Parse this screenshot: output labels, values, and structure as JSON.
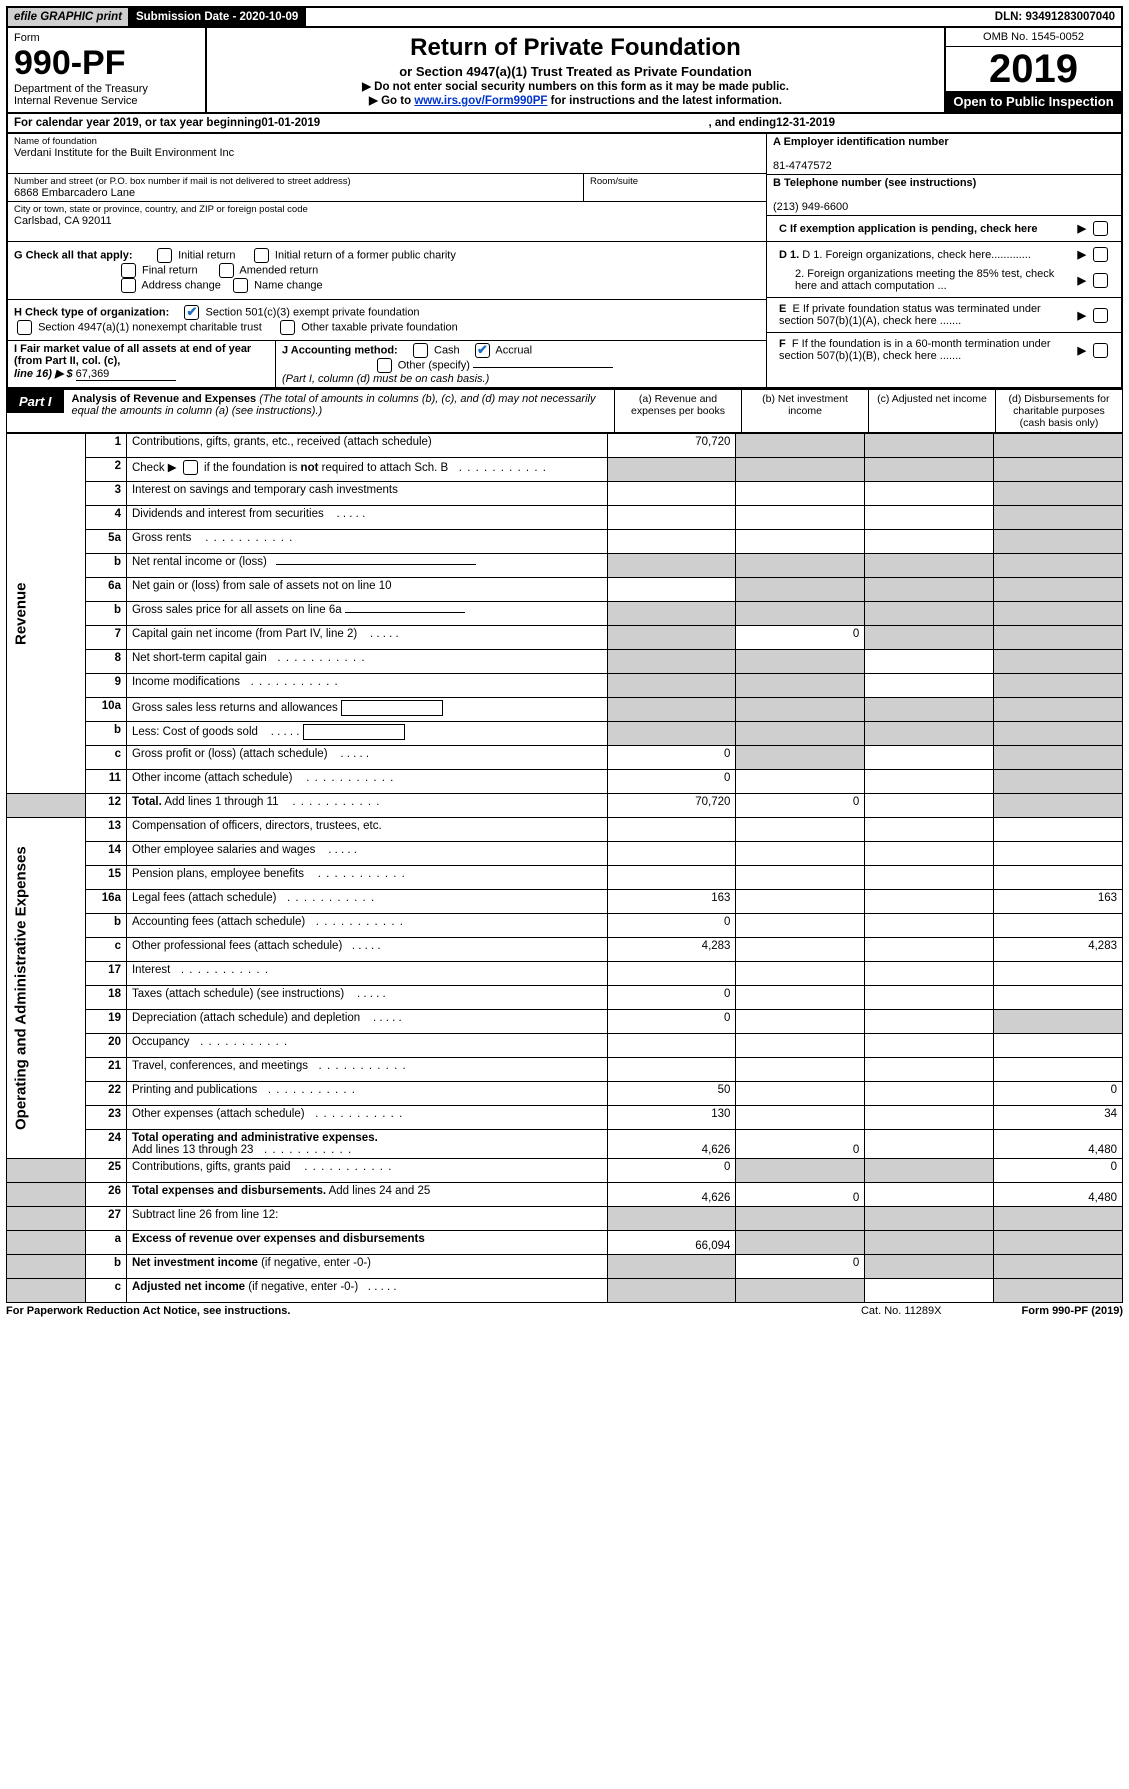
{
  "top": {
    "efile": "efile GRAPHIC print",
    "submission": "Submission Date - 2020-10-09",
    "dln": "DLN: 93491283007040"
  },
  "header": {
    "form_label": "Form",
    "form_no": "990-PF",
    "dept": "Department of the Treasury",
    "irs": "Internal Revenue Service",
    "title": "Return of Private Foundation",
    "subtitle": "or Section 4947(a)(1) Trust Treated as Private Foundation",
    "bullet1": "▶ Do not enter social security numbers on this form as it may be made public.",
    "bullet2_pre": "▶ Go to ",
    "bullet2_link": "www.irs.gov/Form990PF",
    "bullet2_post": " for instructions and the latest information.",
    "omb": "OMB No. 1545-0052",
    "year": "2019",
    "open": "Open to Public Inspection"
  },
  "cal": {
    "pre": "For calendar year 2019, or tax year beginning ",
    "begin": "01-01-2019",
    "mid": ", and ending ",
    "end": "12-31-2019"
  },
  "info": {
    "name_label": "Name of foundation",
    "name": "Verdani Institute for the Built Environment Inc",
    "addr_label": "Number and street (or P.O. box number if mail is not delivered to street address)",
    "addr": "6868 Embarcadero Lane",
    "room_label": "Room/suite",
    "city_label": "City or town, state or province, country, and ZIP or foreign postal code",
    "city": "Carlsbad, CA  92011",
    "a_label": "A Employer identification number",
    "a_val": "81-4747572",
    "b_label": "B Telephone number (see instructions)",
    "b_val": "(213) 949-6600",
    "c_label": "C  If exemption application is pending, check here",
    "d1": "D 1. Foreign organizations, check here.............",
    "d2": "2. Foreign organizations meeting the 85% test, check here and attach computation ...",
    "e_label": "E  If private foundation status was terminated under section 507(b)(1)(A), check here .......",
    "f_label": "F  If the foundation is in a 60-month termination under section 507(b)(1)(B), check here .......",
    "g_label": "G Check all that apply:",
    "g_opts": [
      "Initial return",
      "Initial return of a former public charity",
      "Final return",
      "Amended return",
      "Address change",
      "Name change"
    ],
    "h_label": "H Check type of organization:",
    "h_opts": [
      "Section 501(c)(3) exempt private foundation",
      "Section 4947(a)(1) nonexempt charitable trust",
      "Other taxable private foundation"
    ],
    "i_label": "I Fair market value of all assets at end of year (from Part II, col. (c),",
    "i_line16": "line 16) ▶ $",
    "i_val": "67,369",
    "j_label": "J Accounting method:",
    "j_cash": "Cash",
    "j_accrual": "Accrual",
    "j_other": "Other (specify)",
    "j_note": "(Part I, column (d) must be on cash basis.)"
  },
  "part1": {
    "label": "Part I",
    "title": "Analysis of Revenue and Expenses",
    "note": " (The total of amounts in columns (b), (c), and (d) may not necessarily equal the amounts in column (a) (see instructions).)",
    "col_a": "(a)    Revenue and expenses per books",
    "col_b": "(b)   Net investment income",
    "col_c": "(c)   Adjusted net income",
    "col_d": "(d)   Disbursements for charitable purposes (cash basis only)"
  },
  "sections": {
    "revenue": "Revenue",
    "expenses": "Operating and Administrative Expenses"
  },
  "rows": {
    "r1": {
      "n": "1",
      "d": "Contributions, gifts, grants, etc., received (attach schedule)",
      "a": "70,720"
    },
    "r2": {
      "n": "2",
      "d": "Check ▶ ☐ if the foundation is <b>not</b> required to attach Sch. B"
    },
    "r3": {
      "n": "3",
      "d": "Interest on savings and temporary cash investments"
    },
    "r4": {
      "n": "4",
      "d": "Dividends and interest from securities"
    },
    "r5a": {
      "n": "5a",
      "d": "Gross rents"
    },
    "r5b": {
      "n": "b",
      "d": "Net rental income or (loss)"
    },
    "r6a": {
      "n": "6a",
      "d": "Net gain or (loss) from sale of assets not on line 10"
    },
    "r6b": {
      "n": "b",
      "d": "Gross sales price for all assets on line 6a"
    },
    "r7": {
      "n": "7",
      "d": "Capital gain net income (from Part IV, line 2)",
      "b": "0"
    },
    "r8": {
      "n": "8",
      "d": "Net short-term capital gain"
    },
    "r9": {
      "n": "9",
      "d": "Income modifications"
    },
    "r10a": {
      "n": "10a",
      "d": "Gross sales less returns and allowances"
    },
    "r10b": {
      "n": "b",
      "d": "Less: Cost of goods sold"
    },
    "r10c": {
      "n": "c",
      "d": "Gross profit or (loss) (attach schedule)",
      "a": "0"
    },
    "r11": {
      "n": "11",
      "d": "Other income (attach schedule)",
      "a": "0"
    },
    "r12": {
      "n": "12",
      "d": "<b>Total.</b> Add lines 1 through 11",
      "a": "70,720",
      "b": "0"
    },
    "r13": {
      "n": "13",
      "d": "Compensation of officers, directors, trustees, etc."
    },
    "r14": {
      "n": "14",
      "d": "Other employee salaries and wages"
    },
    "r15": {
      "n": "15",
      "d": "Pension plans, employee benefits"
    },
    "r16a": {
      "n": "16a",
      "d": "Legal fees (attach schedule)",
      "a": "163",
      "dd": "163"
    },
    "r16b": {
      "n": "b",
      "d": "Accounting fees (attach schedule)",
      "a": "0"
    },
    "r16c": {
      "n": "c",
      "d": "Other professional fees (attach schedule)",
      "a": "4,283",
      "dd": "4,283"
    },
    "r17": {
      "n": "17",
      "d": "Interest"
    },
    "r18": {
      "n": "18",
      "d": "Taxes (attach schedule) (see instructions)",
      "a": "0"
    },
    "r19": {
      "n": "19",
      "d": "Depreciation (attach schedule) and depletion",
      "a": "0"
    },
    "r20": {
      "n": "20",
      "d": "Occupancy"
    },
    "r21": {
      "n": "21",
      "d": "Travel, conferences, and meetings"
    },
    "r22": {
      "n": "22",
      "d": "Printing and publications",
      "a": "50",
      "dd": "0"
    },
    "r23": {
      "n": "23",
      "d": "Other expenses (attach schedule)",
      "a": "130",
      "dd": "34"
    },
    "r24": {
      "n": "24",
      "d": "<b>Total operating and administrative expenses.</b> Add lines 13 through 23",
      "a": "4,626",
      "b": "0",
      "dd": "4,480"
    },
    "r25": {
      "n": "25",
      "d": "Contributions, gifts, grants paid",
      "a": "0",
      "dd": "0"
    },
    "r26": {
      "n": "26",
      "d": "<b>Total expenses and disbursements.</b> Add lines 24 and 25",
      "a": "4,626",
      "b": "0",
      "dd": "4,480"
    },
    "r27": {
      "n": "27",
      "d": "Subtract line 26 from line 12:"
    },
    "r27a": {
      "n": "a",
      "d": "<b>Excess of revenue over expenses and disbursements</b>",
      "a": "66,094"
    },
    "r27b": {
      "n": "b",
      "d": "<b>Net investment income</b> (if negative, enter -0-)",
      "b": "0"
    },
    "r27c": {
      "n": "c",
      "d": "<b>Adjusted net income</b> (if negative, enter -0-)"
    }
  },
  "footer": {
    "left": "For Paperwork Reduction Act Notice, see instructions.",
    "mid": "Cat. No. 11289X",
    "right": "Form 990-PF (2019)"
  }
}
